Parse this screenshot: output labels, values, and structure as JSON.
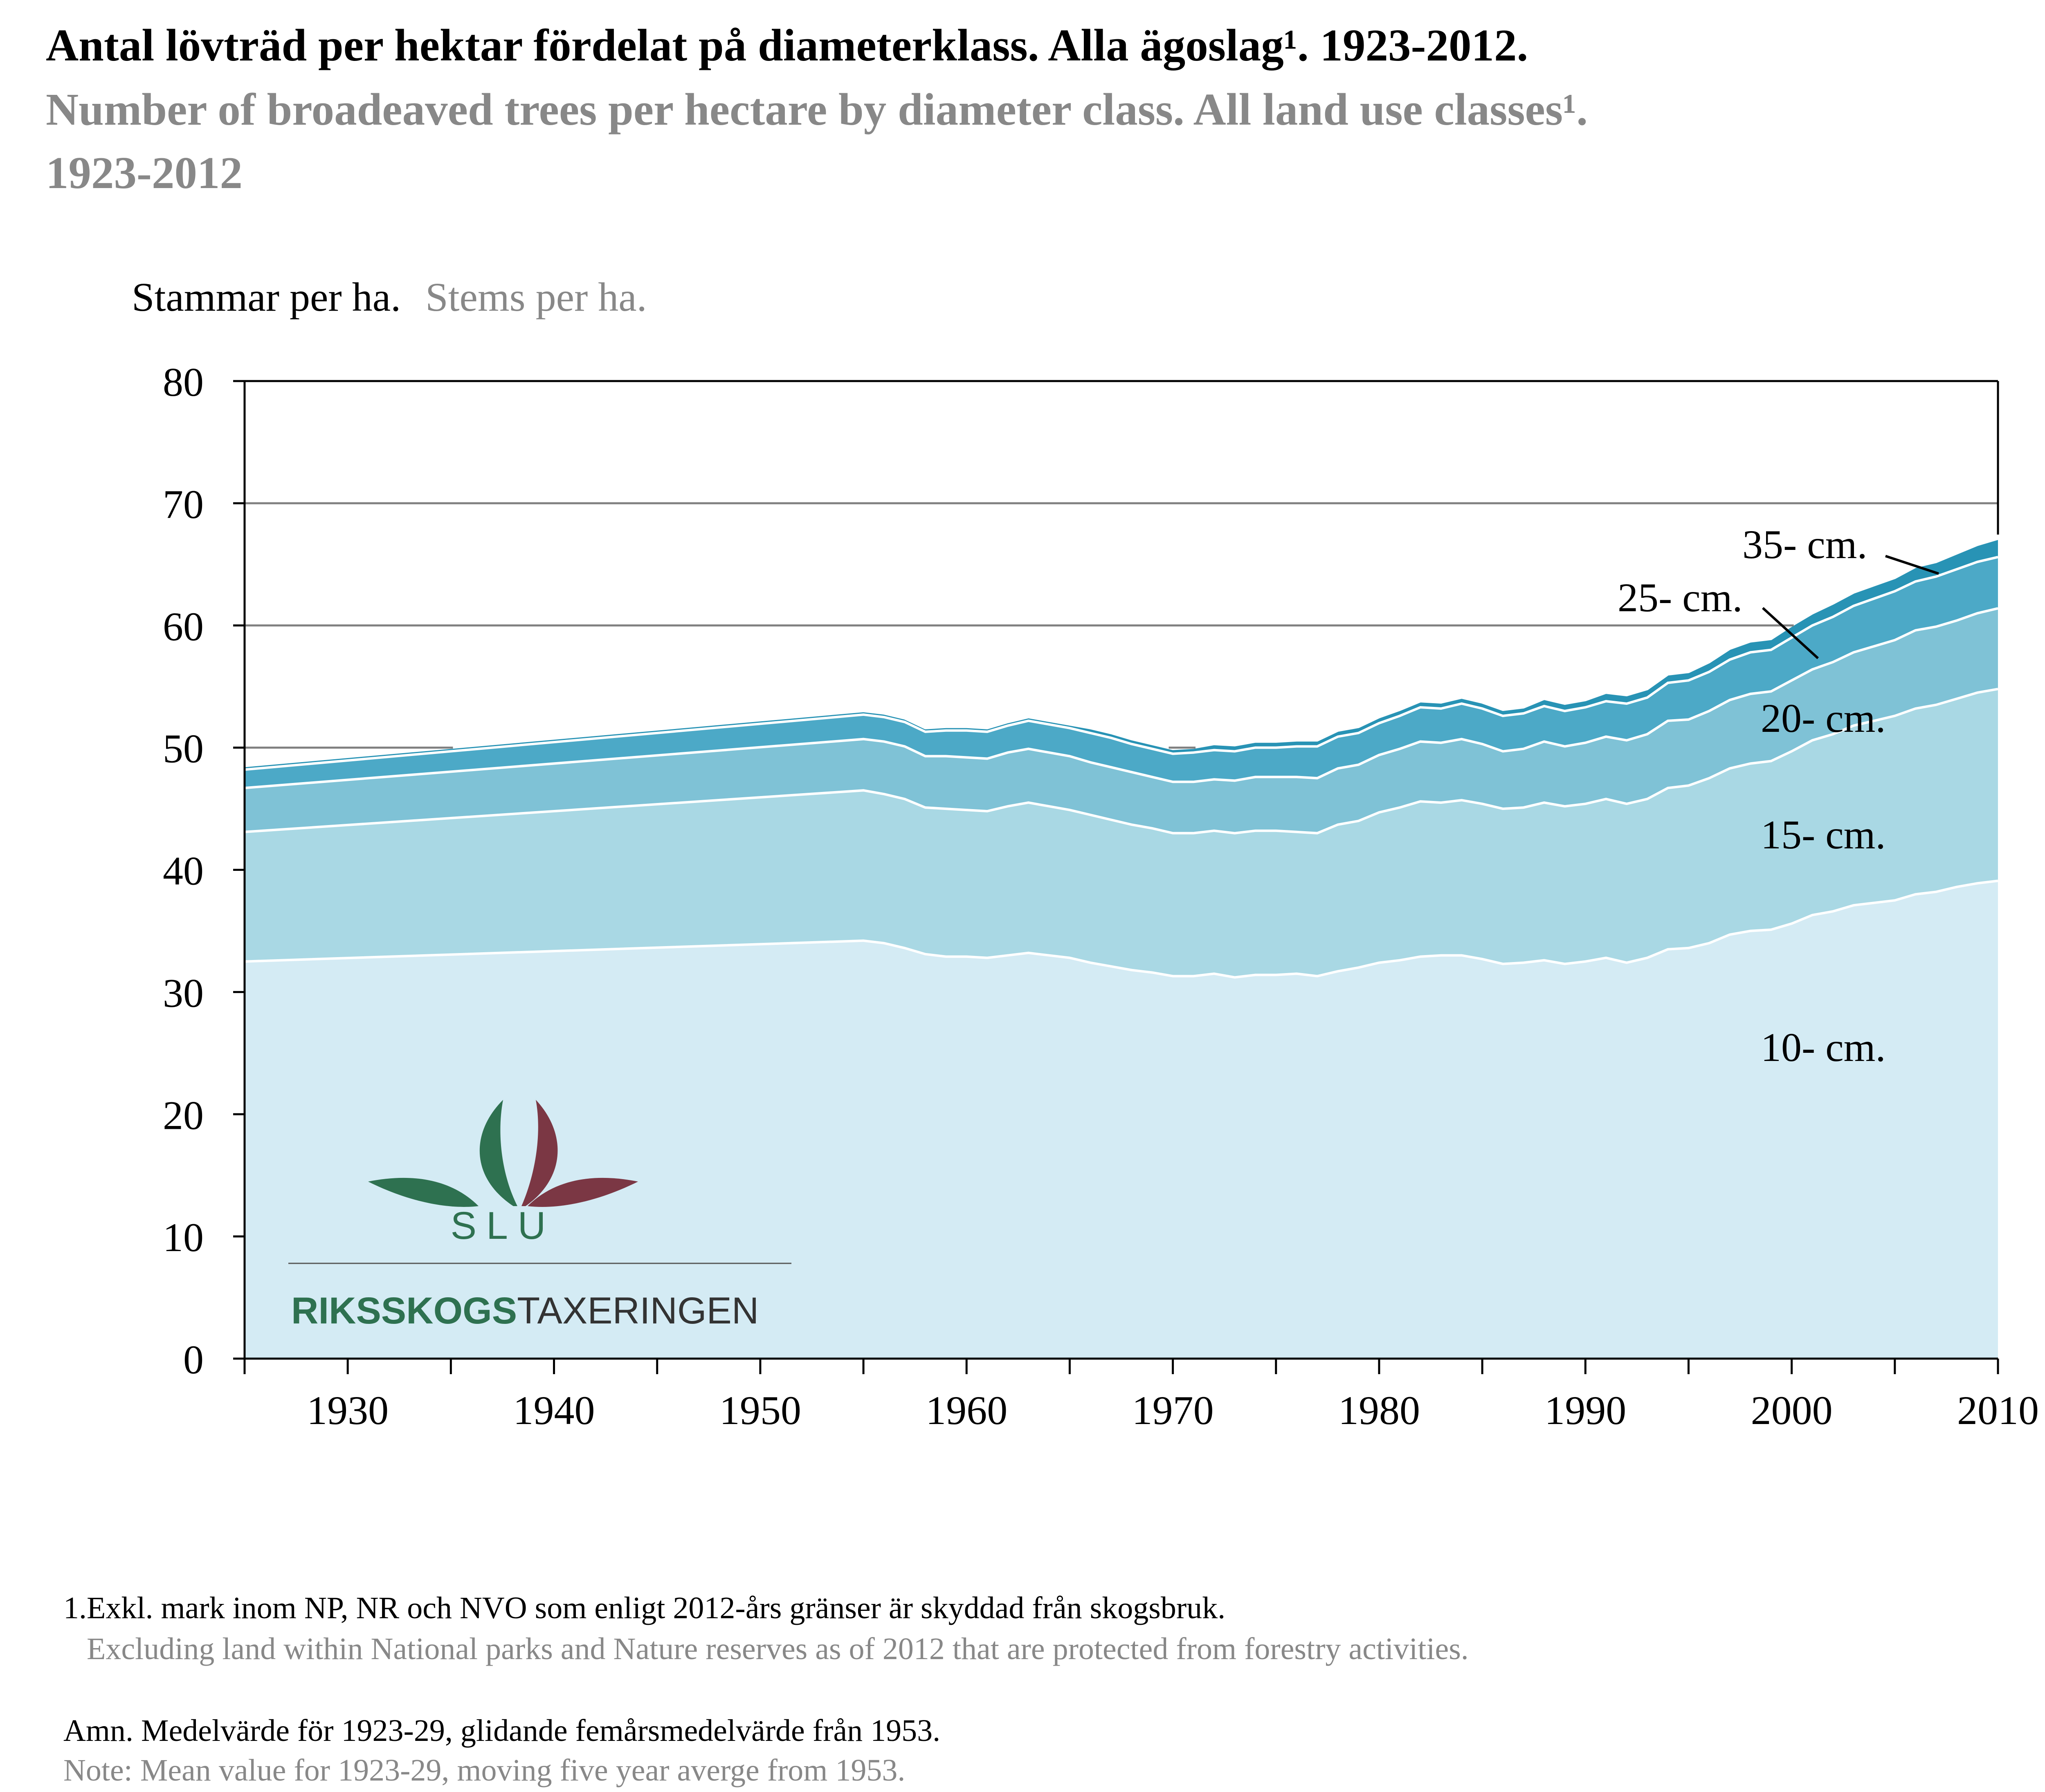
{
  "title": {
    "sv": "Antal lövträd per hektar fördelat på diameterklass. Alla ägoslag¹. 1923-2012.",
    "en_line1": "Number of broadeaved trees per hectare by diameter class. All land use classes¹.",
    "en_line2": "1923-2012"
  },
  "y_axis_title": {
    "sv": "Stammar per ha.",
    "en": "Stems per ha."
  },
  "footnotes": {
    "note1_sv": "1.Exkl. mark inom NP, NR och NVO som enligt 2012-års gränser är skyddad från skogsbruk.",
    "note1_en": "Excluding land within National parks and Nature reserves as of 2012 that are protected from forestry activities.",
    "note2_sv": "Amn. Medelvärde för 1923-29, glidande femårsmedelvärde från 1953.",
    "note2_en": "Note: Mean value for 1923-29, moving five year averge from 1953."
  },
  "logo": {
    "org": "SLU",
    "name_bold": "RIKSSKOGS",
    "name_light": "TAXERINGEN",
    "colors": {
      "green": "#2e7150",
      "maroon": "#7b3744"
    }
  },
  "colors": {
    "s10": "#d4ebf4",
    "s15": "#a9d8e4",
    "s20": "#7fc2d6",
    "s25": "#4ca9c7",
    "s35": "#2893b5",
    "grid": "#808080"
  },
  "chart_data": {
    "type": "area",
    "stacked": true,
    "xlim": [
      1925,
      2010
    ],
    "ylim": [
      0,
      80
    ],
    "x_ticks": [
      1930,
      1940,
      1950,
      1960,
      1970,
      1980,
      1990,
      2000,
      2010
    ],
    "y_ticks": [
      0,
      10,
      20,
      30,
      40,
      50,
      60,
      70,
      80
    ],
    "gridlines_y": [
      50,
      60,
      70
    ],
    "x": [
      1925,
      1955,
      1956,
      1957,
      1958,
      1959,
      1960,
      1961,
      1962,
      1963,
      1964,
      1965,
      1966,
      1967,
      1968,
      1969,
      1970,
      1971,
      1972,
      1973,
      1974,
      1975,
      1976,
      1977,
      1978,
      1979,
      1980,
      1981,
      1982,
      1983,
      1984,
      1985,
      1986,
      1987,
      1988,
      1989,
      1990,
      1991,
      1992,
      1993,
      1994,
      1995,
      1996,
      1997,
      1998,
      1999,
      2000,
      2001,
      2002,
      2003,
      2004,
      2005,
      2006,
      2007,
      2008,
      2009,
      2010
    ],
    "series": [
      {
        "name": "10- cm.",
        "values": [
          32.5,
          34.2,
          34.0,
          33.6,
          33.1,
          32.9,
          32.9,
          32.8,
          33.0,
          33.2,
          33.0,
          32.8,
          32.4,
          32.1,
          31.8,
          31.6,
          31.3,
          31.3,
          31.5,
          31.2,
          31.4,
          31.4,
          31.5,
          31.3,
          31.7,
          32.0,
          32.4,
          32.6,
          32.9,
          33.0,
          33.0,
          32.7,
          32.3,
          32.4,
          32.6,
          32.3,
          32.5,
          32.8,
          32.4,
          32.8,
          33.5,
          33.6,
          34.0,
          34.7,
          35.0,
          35.1,
          35.6,
          36.3,
          36.6,
          37.1,
          37.3,
          37.5,
          38.0,
          38.2,
          38.6,
          38.9,
          39.1
        ]
      },
      {
        "name": "15- cm.",
        "values": [
          10.6,
          12.3,
          12.2,
          12.2,
          12.0,
          12.1,
          12.0,
          12.0,
          12.2,
          12.3,
          12.2,
          12.1,
          12.1,
          12.0,
          11.9,
          11.8,
          11.7,
          11.7,
          11.7,
          11.8,
          11.8,
          11.8,
          11.6,
          11.7,
          12.0,
          12.0,
          12.3,
          12.5,
          12.7,
          12.5,
          12.7,
          12.7,
          12.7,
          12.7,
          12.9,
          12.9,
          12.9,
          13.0,
          13.0,
          13.0,
          13.2,
          13.3,
          13.5,
          13.6,
          13.7,
          13.8,
          14.1,
          14.3,
          14.5,
          14.7,
          14.9,
          15.1,
          15.2,
          15.3,
          15.4,
          15.6,
          15.7
        ]
      },
      {
        "name": "20- cm.",
        "values": [
          3.6,
          4.2,
          4.3,
          4.3,
          4.2,
          4.3,
          4.3,
          4.3,
          4.4,
          4.4,
          4.4,
          4.4,
          4.3,
          4.3,
          4.3,
          4.2,
          4.2,
          4.2,
          4.2,
          4.3,
          4.4,
          4.4,
          4.5,
          4.5,
          4.6,
          4.6,
          4.7,
          4.8,
          4.9,
          4.9,
          5.0,
          4.9,
          4.7,
          4.8,
          5.0,
          4.9,
          5.0,
          5.1,
          5.2,
          5.3,
          5.5,
          5.4,
          5.5,
          5.6,
          5.7,
          5.7,
          5.8,
          5.8,
          5.9,
          6.0,
          6.1,
          6.2,
          6.4,
          6.4,
          6.4,
          6.5,
          6.6
        ]
      },
      {
        "name": "25- cm.",
        "values": [
          1.5,
          2.0,
          2.0,
          2.0,
          2.0,
          2.1,
          2.2,
          2.2,
          2.2,
          2.3,
          2.3,
          2.3,
          2.4,
          2.4,
          2.3,
          2.3,
          2.3,
          2.4,
          2.4,
          2.4,
          2.4,
          2.4,
          2.5,
          2.6,
          2.6,
          2.6,
          2.6,
          2.7,
          2.8,
          2.8,
          2.9,
          2.9,
          2.9,
          2.9,
          2.9,
          2.9,
          2.9,
          2.9,
          3.0,
          3.0,
          3.1,
          3.2,
          3.2,
          3.3,
          3.4,
          3.4,
          3.5,
          3.6,
          3.7,
          3.8,
          3.9,
          4.0,
          4.0,
          4.1,
          4.2,
          4.2,
          4.2
        ]
      },
      {
        "name": "35- cm.",
        "values": [
          0.3,
          0.3,
          0.3,
          0.3,
          0.3,
          0.3,
          0.3,
          0.3,
          0.3,
          0.3,
          0.3,
          0.3,
          0.4,
          0.4,
          0.4,
          0.4,
          0.4,
          0.4,
          0.5,
          0.5,
          0.5,
          0.5,
          0.5,
          0.5,
          0.5,
          0.5,
          0.5,
          0.5,
          0.5,
          0.5,
          0.5,
          0.5,
          0.5,
          0.5,
          0.6,
          0.6,
          0.6,
          0.7,
          0.7,
          0.7,
          0.7,
          0.7,
          0.8,
          0.9,
          0.9,
          0.9,
          1.0,
          1.0,
          1.1,
          1.1,
          1.1,
          1.1,
          1.2,
          1.2,
          1.3,
          1.4,
          1.5
        ]
      }
    ]
  }
}
